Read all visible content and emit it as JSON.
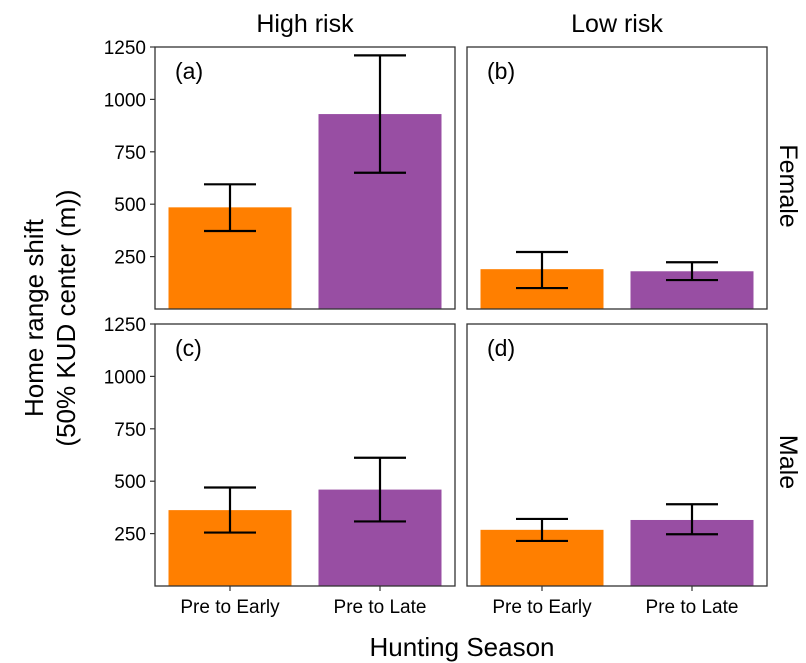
{
  "colors": {
    "pre_to_early": "#ff7f00",
    "pre_to_late": "#984ea3"
  },
  "chart_data": {
    "type": "bar",
    "xlabel": "Hunting Season",
    "ylabel_line1": "Home range shift",
    "ylabel_line2": "(50% KUD center (m))",
    "categories": [
      "Pre to Early",
      "Pre to Late"
    ],
    "column_strips": [
      "High risk",
      "Low risk"
    ],
    "row_strips": [
      "Female",
      "Male"
    ],
    "yticks": [
      250,
      500,
      750,
      1000,
      1250
    ],
    "ytick_labels": [
      "250",
      "500",
      "750",
      "1000",
      "1250"
    ],
    "ylim": [
      0,
      1250
    ],
    "panels": [
      {
        "label": "(a)",
        "column": "High risk",
        "row": "Female",
        "values": [
          485,
          930
        ],
        "lower": [
          372,
          650
        ],
        "upper": [
          595,
          1210
        ]
      },
      {
        "label": "(b)",
        "column": "Low risk",
        "row": "Female",
        "values": [
          190,
          180
        ],
        "lower": [
          100,
          138
        ],
        "upper": [
          272,
          223
        ]
      },
      {
        "label": "(c)",
        "column": "High risk",
        "row": "Male",
        "values": [
          362,
          460
        ],
        "lower": [
          255,
          308
        ],
        "upper": [
          470,
          612
        ]
      },
      {
        "label": "(d)",
        "column": "Low risk",
        "row": "Male",
        "values": [
          268,
          315
        ],
        "lower": [
          215,
          247
        ],
        "upper": [
          320,
          390
        ]
      }
    ]
  }
}
